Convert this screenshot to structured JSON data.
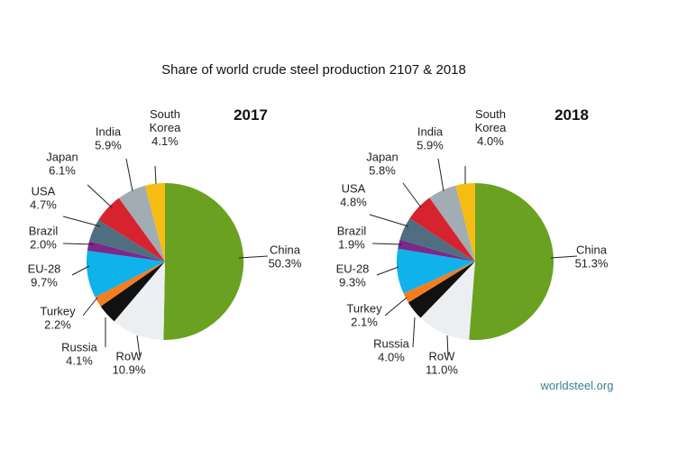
{
  "chart_data": [
    {
      "type": "pie",
      "title": "2017",
      "unit": "%",
      "slices": [
        {
          "label": "China",
          "value": 50.3,
          "display": "50.3%",
          "color": "#6aa121"
        },
        {
          "label": "RoW",
          "value": 10.9,
          "display": "10.9%",
          "color": "#eceff2"
        },
        {
          "label": "Russia",
          "value": 4.1,
          "display": "4.1%",
          "color": "#111111"
        },
        {
          "label": "Turkey",
          "value": 2.2,
          "display": "2.2%",
          "color": "#f47d20"
        },
        {
          "label": "EU-28",
          "value": 9.7,
          "display": "9.7%",
          "color": "#0fb2ea"
        },
        {
          "label": "Brazil",
          "value": 2.0,
          "display": "2.0%",
          "color": "#7b2a8c"
        },
        {
          "label": "USA",
          "value": 4.7,
          "display": "4.7%",
          "color": "#4f6f80"
        },
        {
          "label": "Japan",
          "value": 6.1,
          "display": "6.1%",
          "color": "#d7232e"
        },
        {
          "label": "India",
          "value": 5.9,
          "display": "5.9%",
          "color": "#a2acb3"
        },
        {
          "label": "South\nKorea",
          "value": 4.1,
          "display": "4.1%",
          "color": "#f5bd14"
        }
      ]
    },
    {
      "type": "pie",
      "title": "2018",
      "unit": "%",
      "slices": [
        {
          "label": "China",
          "value": 51.3,
          "display": "51.3%",
          "color": "#6aa121"
        },
        {
          "label": "RoW",
          "value": 11.0,
          "display": "11.0%",
          "color": "#eceff2"
        },
        {
          "label": "Russia",
          "value": 4.0,
          "display": "4.0%",
          "color": "#111111"
        },
        {
          "label": "Turkey",
          "value": 2.1,
          "display": "2.1%",
          "color": "#f47d20"
        },
        {
          "label": "EU-28",
          "value": 9.3,
          "display": "9.3%",
          "color": "#0fb2ea"
        },
        {
          "label": "Brazil",
          "value": 1.9,
          "display": "1.9%",
          "color": "#7b2a8c"
        },
        {
          "label": "USA",
          "value": 4.8,
          "display": "4.8%",
          "color": "#4f6f80"
        },
        {
          "label": "Japan",
          "value": 5.8,
          "display": "5.8%",
          "color": "#d7232e"
        },
        {
          "label": "India",
          "value": 5.9,
          "display": "5.9%",
          "color": "#a2acb3"
        },
        {
          "label": "South\nKorea",
          "value": 4.0,
          "display": "4.0%",
          "color": "#f5bd14"
        }
      ]
    }
  ],
  "figure": {
    "title": "Share of world crude steel production 2107 & 2018",
    "source": "worldsteel.org"
  }
}
